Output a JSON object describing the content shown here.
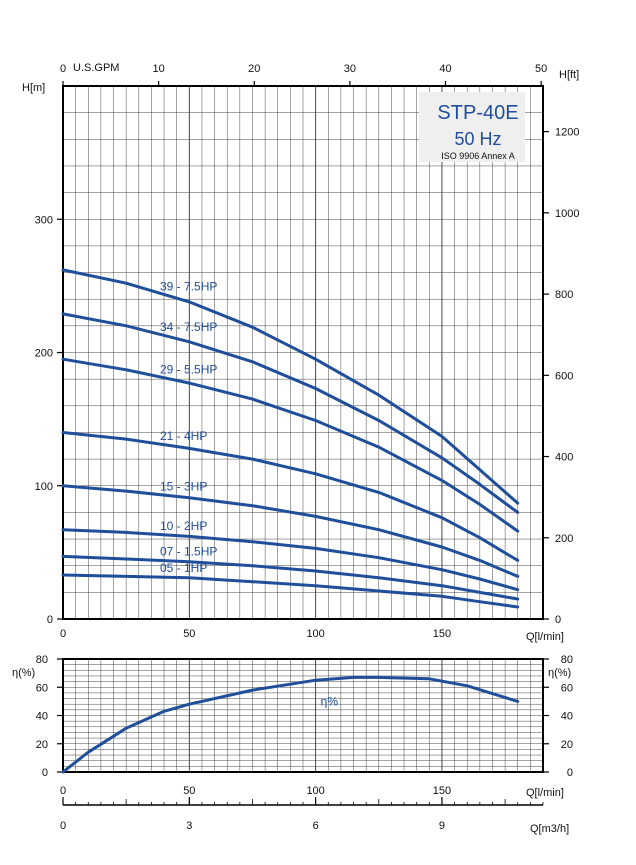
{
  "chart_data": [
    {
      "type": "line",
      "title": "STP-40E",
      "subtitle": "50 Hz",
      "note": "ISO 9906 Annex A",
      "xlabel": "Q[l/min]",
      "ylabel": "H[m]",
      "y2label": "H[ft]",
      "x2label": "U.S.GPM",
      "xlim": [
        0,
        190
      ],
      "ylim": [
        0,
        400
      ],
      "x_ticks": [
        0,
        50,
        100,
        150
      ],
      "y_ticks": [
        0,
        100,
        200,
        300
      ],
      "y2_ticks": [
        0,
        200,
        400,
        600,
        800,
        1000,
        1200
      ],
      "x2_ticks": [
        0,
        10,
        20,
        30,
        40,
        50
      ],
      "grid": true,
      "series": [
        {
          "name": "39 - 7.5HP",
          "x": [
            0,
            25,
            50,
            75,
            100,
            125,
            150,
            165,
            180
          ],
          "y": [
            262,
            252,
            238,
            219,
            195,
            168,
            137,
            112,
            87
          ]
        },
        {
          "name": "34 - 7.5HP",
          "x": [
            0,
            25,
            50,
            75,
            100,
            125,
            150,
            165,
            180
          ],
          "y": [
            229,
            220,
            208,
            193,
            173,
            149,
            121,
            101,
            80
          ]
        },
        {
          "name": "29 - 5.5HP",
          "x": [
            0,
            25,
            50,
            75,
            100,
            125,
            150,
            165,
            180
          ],
          "y": [
            195,
            187,
            177,
            165,
            149,
            129,
            104,
            86,
            66
          ]
        },
        {
          "name": "21 - 4HP",
          "x": [
            0,
            25,
            50,
            75,
            100,
            125,
            150,
            165,
            180
          ],
          "y": [
            140,
            135,
            128,
            120,
            109,
            95,
            76,
            61,
            44
          ]
        },
        {
          "name": "15 - 3HP",
          "x": [
            0,
            25,
            50,
            75,
            100,
            125,
            150,
            165,
            180
          ],
          "y": [
            100,
            96,
            91,
            85,
            77,
            67,
            54,
            44,
            32
          ]
        },
        {
          "name": "10 - 2HP",
          "x": [
            0,
            25,
            50,
            75,
            100,
            125,
            150,
            165,
            180
          ],
          "y": [
            67,
            65,
            62,
            58,
            53,
            46,
            37,
            30,
            22
          ]
        },
        {
          "name": "07 - 1.5HP",
          "x": [
            0,
            25,
            50,
            75,
            100,
            125,
            150,
            165,
            180
          ],
          "y": [
            47,
            45,
            43,
            40,
            36,
            31,
            25,
            20,
            15
          ]
        },
        {
          "name": "05 - 1HP",
          "x": [
            0,
            25,
            50,
            75,
            100,
            125,
            150,
            165,
            180
          ],
          "y": [
            33,
            32,
            31,
            28,
            25,
            21,
            17,
            13,
            9
          ]
        }
      ]
    },
    {
      "type": "line",
      "xlabel": "Q[l/min]",
      "ylabel": "η(%)",
      "y2label": "η(%)",
      "x2label": "Q[m3/h]",
      "xlim": [
        0,
        190
      ],
      "ylim": [
        0,
        80
      ],
      "x_ticks": [
        0,
        50,
        100,
        150
      ],
      "y_ticks": [
        0,
        20,
        40,
        60,
        80
      ],
      "x2_ticks": [
        0,
        3,
        6,
        9
      ],
      "grid": true,
      "series": [
        {
          "name": "η%",
          "x": [
            0,
            10,
            25,
            40,
            50,
            75,
            100,
            115,
            125,
            145,
            160,
            180
          ],
          "y": [
            0,
            14,
            31,
            43,
            48,
            58,
            65,
            67,
            67,
            66,
            61,
            50
          ]
        }
      ]
    }
  ],
  "colors": {
    "curve": "#1f4e9a",
    "grid": "#333333",
    "title_box": "#efefef"
  }
}
